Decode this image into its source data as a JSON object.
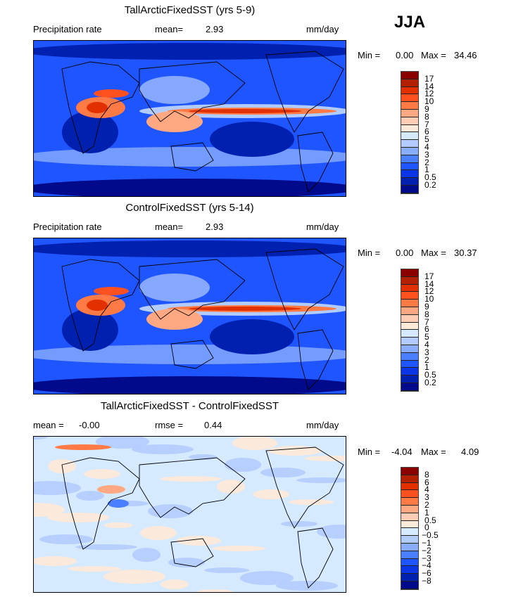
{
  "season": "JJA",
  "chart_data": [
    {
      "type": "heatmap",
      "title": "TallArcticFixedSST (yrs 5-9)",
      "variable": "Precipitation rate",
      "mean_label": "mean=",
      "mean": "2.93",
      "units": "mm/day",
      "min_label": "Min =",
      "min": "0.00",
      "max_label": "Max =",
      "max": "34.46",
      "levels": [
        "17",
        "14",
        "12",
        "10",
        "9",
        "8",
        "7",
        "6",
        "5",
        "4",
        "3",
        "2",
        "1",
        "0.5",
        "0.2"
      ],
      "colors": [
        "#8a0000",
        "#b32000",
        "#e33000",
        "#ff5020",
        "#ff7a45",
        "#ffa882",
        "#ffcdb5",
        "#ffe9d8",
        "#d5e9ff",
        "#b3ccff",
        "#8aadff",
        "#4a7fff",
        "#1f55ff",
        "#0a35e6",
        "#0020b0",
        "#000a8a"
      ]
    },
    {
      "type": "heatmap",
      "title": "ControlFixedSST (yrs 5-14)",
      "variable": "Precipitation rate",
      "mean_label": "mean=",
      "mean": "2.93",
      "units": "mm/day",
      "min_label": "Min =",
      "min": "0.00",
      "max_label": "Max =",
      "max": "30.37",
      "levels": [
        "17",
        "14",
        "12",
        "10",
        "9",
        "8",
        "7",
        "6",
        "5",
        "4",
        "3",
        "2",
        "1",
        "0.5",
        "0.2"
      ],
      "colors": [
        "#8a0000",
        "#b32000",
        "#e33000",
        "#ff5020",
        "#ff7a45",
        "#ffa882",
        "#ffcdb5",
        "#ffe9d8",
        "#d5e9ff",
        "#b3ccff",
        "#8aadff",
        "#4a7fff",
        "#1f55ff",
        "#0a35e6",
        "#0020b0",
        "#000a8a"
      ]
    },
    {
      "type": "heatmap",
      "title": "TallArcticFixedSST - ControlFixedSST",
      "mean_label": "mean =",
      "mean": "-0.00",
      "rmse_label": "rmse =",
      "rmse": "0.44",
      "units": "mm/day",
      "min_label": "Min =",
      "min": "-4.04",
      "max_label": "Max =",
      "max": "4.09",
      "levels": [
        "8",
        "6",
        "4",
        "3",
        "2",
        "1",
        "0.5",
        "0",
        "-0.5",
        "-1",
        "-2",
        "-3",
        "-4",
        "-6",
        "-8"
      ],
      "colors": [
        "#8a0000",
        "#b32000",
        "#e33000",
        "#ff5020",
        "#ff7a45",
        "#ffa882",
        "#ffcdb5",
        "#ffe9d8",
        "#d5e9ff",
        "#b3ccff",
        "#8aadff",
        "#4a7fff",
        "#1f55ff",
        "#0a35e6",
        "#0020b0",
        "#000a8a"
      ]
    }
  ]
}
